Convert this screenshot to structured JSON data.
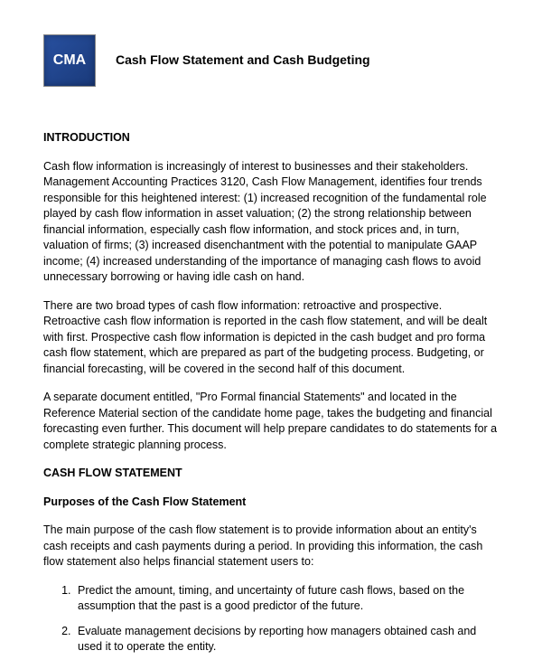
{
  "header": {
    "logo_text": "CMA",
    "title": "Cash Flow Statement and Cash Budgeting"
  },
  "sections": {
    "intro_heading": "INTRODUCTION",
    "para1": "Cash flow information is increasingly of interest to businesses and their stakeholders. Management Accounting Practices 3120, Cash Flow Management, identifies four trends responsible for this heightened interest: (1) increased recognition of the fundamental role played by cash flow information in asset valuation; (2) the strong relationship between financial information, especially cash flow information, and stock prices and, in turn, valuation of firms; (3) increased disenchantment with the potential to manipulate GAAP income; (4) increased understanding of the importance of managing cash flows to avoid unnecessary borrowing or having idle cash on hand.",
    "para2": "There are two broad types of cash flow information: retroactive and prospective. Retroactive cash flow information is reported in the cash flow statement, and will be dealt with first. Prospective cash flow information is depicted in the cash budget and pro forma cash flow statement, which are prepared as part of the budgeting process. Budgeting, or financial forecasting, will be covered in the second half of this document.",
    "para3": "A separate document entitled, \"Pro Formal financial Statements\" and located in the Reference Material section of the candidate home page, takes the budgeting and financial forecasting even further. This document will help prepare candidates to do statements for a complete strategic planning process.",
    "cfs_heading": "CASH FLOW STATEMENT",
    "purposes_heading": "Purposes of the Cash Flow Statement",
    "para4": "The main purpose of the cash flow statement is to provide information about an entity's cash receipts and cash payments during a period. In providing this information, the cash flow statement also helps financial statement users to:",
    "list": [
      "Predict the amount, timing, and uncertainty of future cash flows, based on the assumption that the past is a good predictor of the future.",
      "Evaluate management decisions by reporting how managers obtained cash and used it to operate the entity."
    ]
  },
  "styles": {
    "logo_bg_start": "#2850a0",
    "logo_bg_end": "#1a3a7a",
    "text_color": "#000000",
    "background": "#ffffff",
    "base_fontsize": 12.5,
    "title_fontsize": 14
  }
}
